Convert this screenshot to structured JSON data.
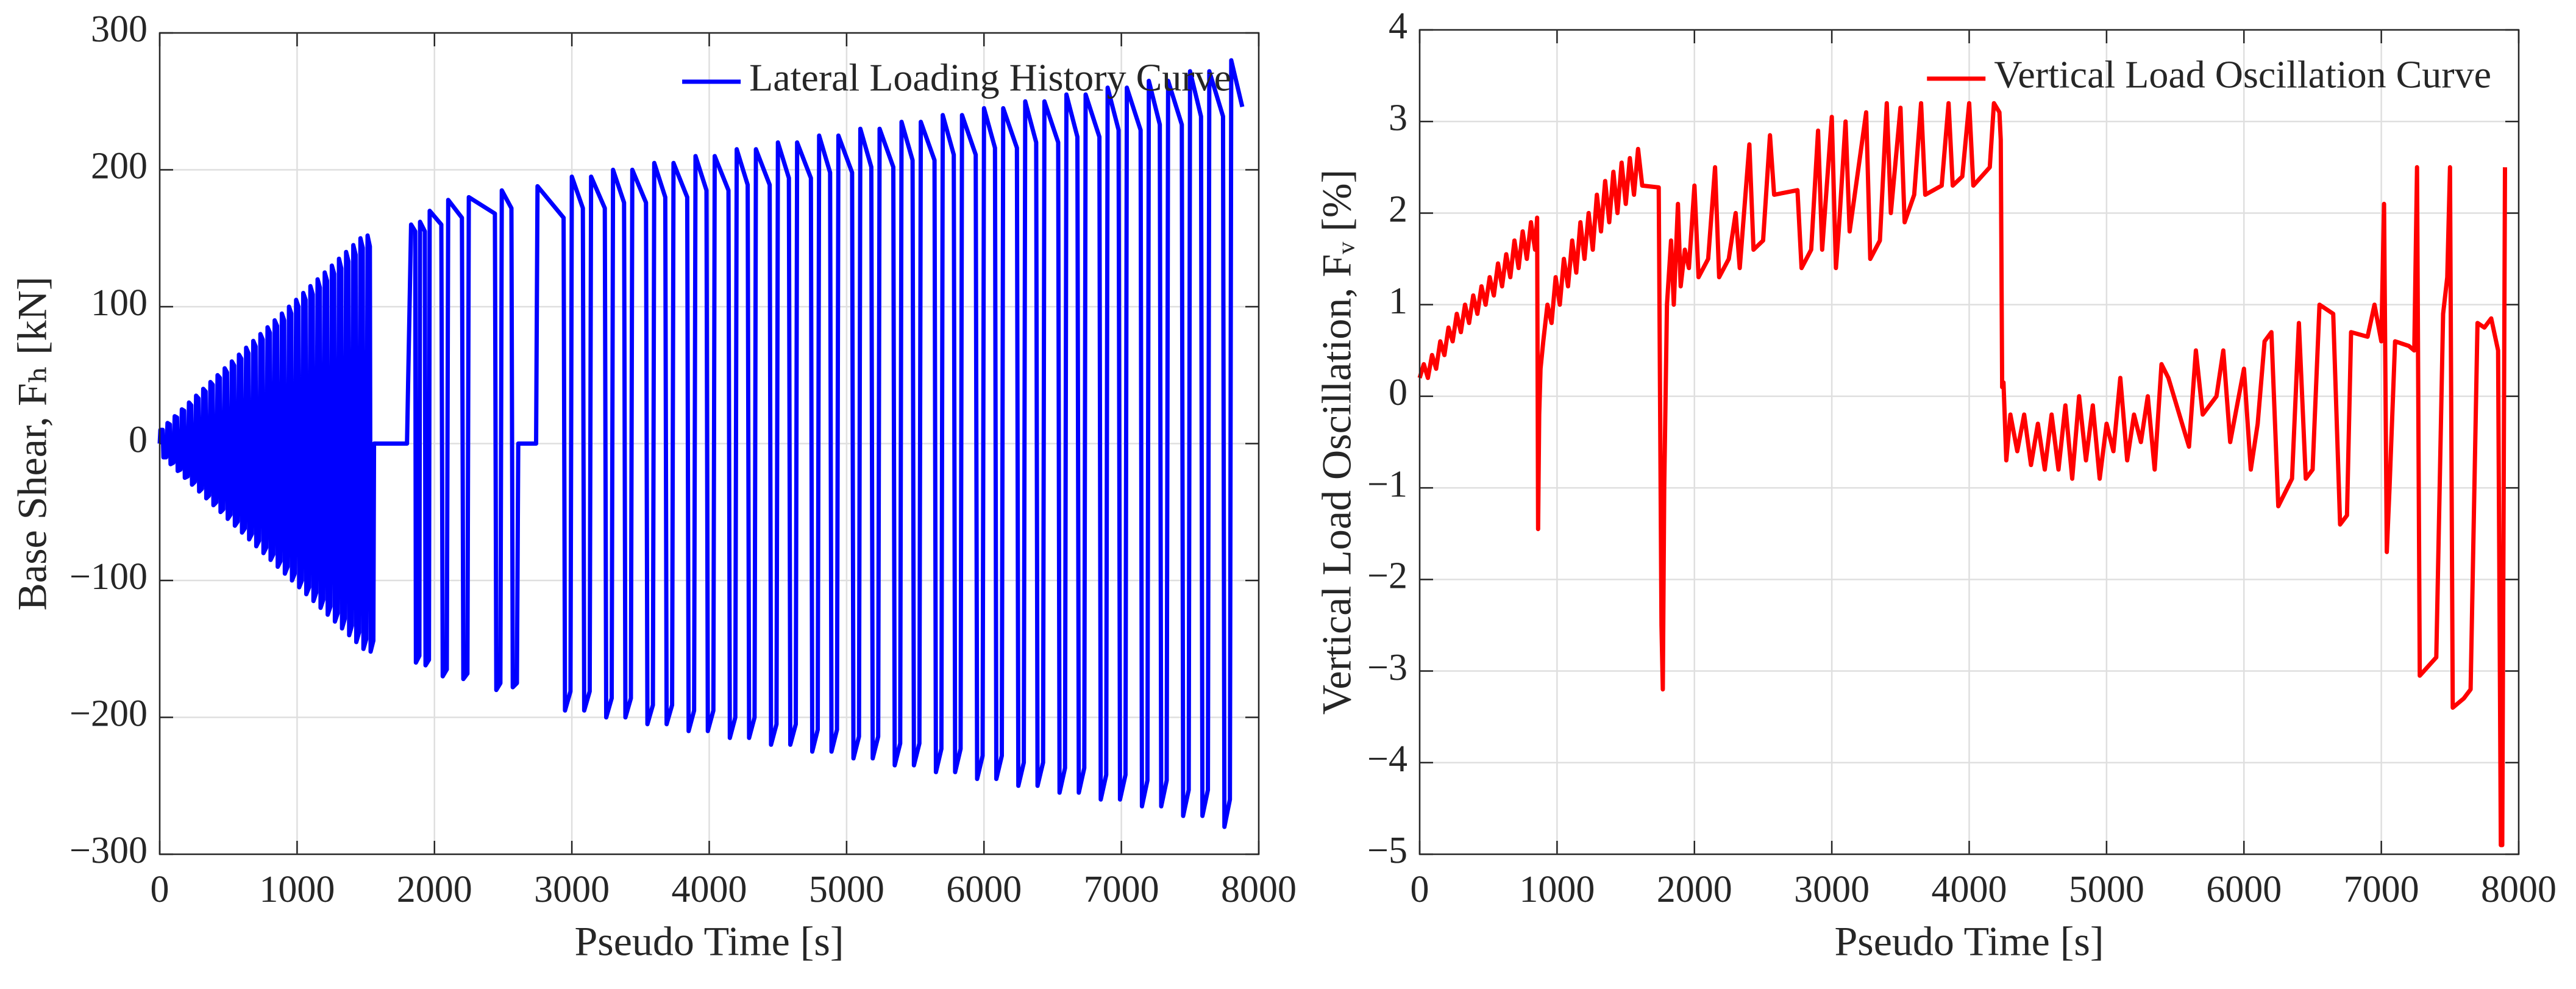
{
  "chart_data": [
    {
      "type": "line",
      "xlabel": "Pseudo Time [s]",
      "ylabel": "Base Shear, Fₕ [kN]",
      "xlim": [
        0,
        8000
      ],
      "xticks": [
        0,
        1000,
        2000,
        3000,
        4000,
        5000,
        6000,
        7000,
        8000
      ],
      "ylim": [
        -300,
        300
      ],
      "yticks": [
        {
          "value": -300,
          "label": "−300"
        },
        {
          "value": -200,
          "label": "−200"
        },
        {
          "value": -100,
          "label": "−100"
        },
        0,
        100,
        200,
        300
      ],
      "grid": true,
      "legend": "upper right",
      "series": [
        {
          "name": "Lateral Loading History Curve",
          "color": "#0000ff",
          "x": [
            0,
            5,
            22,
            27,
            47,
            52,
            57,
            74,
            79,
            99,
            104,
            109,
            126,
            131,
            151,
            156,
            161,
            178,
            183,
            203,
            208,
            213,
            230,
            235,
            255,
            260,
            265,
            282,
            287,
            307,
            312,
            317,
            334,
            339,
            359,
            364,
            369,
            386,
            391,
            411,
            416,
            421,
            438,
            443,
            463,
            468,
            473,
            490,
            495,
            515,
            520,
            525,
            542,
            547,
            567,
            572,
            577,
            594,
            599,
            619,
            624,
            629,
            646,
            651,
            671,
            676,
            681,
            698,
            703,
            723,
            728,
            733,
            750,
            755,
            775,
            780,
            785,
            802,
            807,
            827,
            832,
            837,
            854,
            859,
            879,
            884,
            889,
            906,
            911,
            931,
            936,
            941,
            958,
            963,
            983,
            988,
            993,
            1010,
            1015,
            1035,
            1040,
            1045,
            1062,
            1067,
            1087,
            1092,
            1097,
            1114,
            1119,
            1139,
            1144,
            1149,
            1166,
            1171,
            1191,
            1196,
            1201,
            1218,
            1223,
            1243,
            1248,
            1253,
            1270,
            1275,
            1295,
            1300,
            1305,
            1322,
            1327,
            1347,
            1352,
            1357,
            1374,
            1379,
            1399,
            1404,
            1409,
            1426,
            1431,
            1451,
            1456,
            1461,
            1478,
            1483,
            1503,
            1508,
            1513,
            1530,
            1535,
            1555,
            1560,
            1800,
            1830,
            1860,
            1865,
            1890,
            1895,
            1930,
            1935,
            1960,
            1965,
            2050,
            2060,
            2090,
            2100,
            2200,
            2210,
            2240,
            2250,
            2440,
            2450,
            2480,
            2490,
            2560,
            2570,
            2600,
            2610,
            2740,
            2750,
            2940,
            2950,
            2990,
            3000,
            3080,
            3090,
            3130,
            3140,
            3240,
            3250,
            3290,
            3300,
            3380,
            3390,
            3430,
            3440,
            3540,
            3550,
            3590,
            3600,
            3680,
            3690,
            3730,
            3740,
            3840,
            3850,
            3890,
            3900,
            3980,
            3990,
            4030,
            4040,
            4140,
            4150,
            4190,
            4200,
            4280,
            4290,
            4330,
            4340,
            4440,
            4450,
            4490,
            4500,
            4580,
            4590,
            4630,
            4640,
            4740,
            4750,
            4790,
            4800,
            4880,
            4890,
            4930,
            4940,
            5040,
            5050,
            5090,
            5100,
            5180,
            5190,
            5230,
            5240,
            5340,
            5350,
            5390,
            5400,
            5480,
            5490,
            5530,
            5540,
            5640,
            5650,
            5690,
            5700,
            5780,
            5790,
            5830,
            5840,
            5940,
            5950,
            5990,
            6000,
            6080,
            6090,
            6130,
            6140,
            6240,
            6250,
            6290,
            6300,
            6380,
            6390,
            6430,
            6440,
            6540,
            6550,
            6590,
            6600,
            6680,
            6690,
            6730,
            6740,
            6840,
            6850,
            6890,
            6900,
            6980,
            6990,
            7030,
            7040,
            7140,
            7150,
            7190,
            7200,
            7280,
            7290,
            7330,
            7340,
            7440,
            7450,
            7490,
            7500,
            7580,
            7590,
            7630,
            7640,
            7740,
            7750,
            7790,
            7800,
            7880
          ],
          "values": [
            0,
            10,
            10,
            -10,
            -10,
            0,
            15,
            14,
            -15,
            -14,
            0,
            20,
            19,
            -20,
            -19,
            0,
            25,
            24,
            -25,
            -24,
            0,
            30,
            28,
            -30,
            -28,
            0,
            35,
            33,
            -35,
            -33,
            0,
            40,
            38,
            -40,
            -38,
            0,
            45,
            43,
            -45,
            -43,
            0,
            50,
            48,
            -50,
            -48,
            0,
            55,
            52,
            -55,
            -52,
            0,
            60,
            57,
            -60,
            -57,
            0,
            65,
            62,
            -65,
            -62,
            0,
            70,
            66,
            -70,
            -66,
            0,
            75,
            71,
            -75,
            -71,
            0,
            80,
            76,
            -80,
            -76,
            0,
            85,
            81,
            -85,
            -81,
            0,
            90,
            86,
            -90,
            -86,
            0,
            95,
            90,
            -95,
            -90,
            0,
            100,
            95,
            -100,
            -95,
            0,
            105,
            100,
            -105,
            -100,
            0,
            110,
            105,
            -110,
            -105,
            0,
            115,
            109,
            -115,
            -109,
            0,
            120,
            114,
            -120,
            -114,
            0,
            125,
            119,
            -125,
            -119,
            0,
            130,
            124,
            -130,
            -124,
            0,
            135,
            128,
            -135,
            -128,
            0,
            140,
            133,
            -140,
            -133,
            0,
            145,
            138,
            -145,
            -138,
            0,
            150,
            143,
            -150,
            -143,
            0,
            152,
            144,
            -152,
            -144,
            0,
            0,
            160,
            155,
            -160,
            -155,
            162,
            155,
            -162,
            -158,
            170,
            160,
            -170,
            -165,
            178,
            165,
            -172,
            -168,
            180,
            168,
            -180,
            -175,
            185,
            172,
            -178,
            -175,
            0,
            0,
            188,
            165,
            -195,
            -181,
            195,
            172,
            -195,
            -181,
            195,
            172,
            -200,
            -186,
            200,
            176,
            -200,
            -186,
            200,
            176,
            -205,
            -191,
            205,
            180,
            -205,
            -191,
            205,
            180,
            -210,
            -195,
            210,
            185,
            -210,
            -195,
            210,
            185,
            -215,
            -200,
            215,
            189,
            -215,
            -200,
            215,
            189,
            -220,
            -205,
            220,
            194,
            -220,
            -205,
            220,
            194,
            -225,
            -209,
            225,
            198,
            -225,
            -209,
            225,
            198,
            -230,
            -214,
            230,
            202,
            -230,
            -214,
            230,
            202,
            -235,
            -219,
            235,
            207,
            -235,
            -219,
            235,
            207,
            -240,
            -223,
            240,
            211,
            -240,
            -223,
            240,
            211,
            -245,
            -228,
            245,
            216,
            -245,
            -228,
            245,
            216,
            -250,
            -233,
            250,
            220,
            -250,
            -233,
            250,
            220,
            -255,
            -237,
            255,
            224,
            -255,
            -237,
            255,
            224,
            -260,
            -242,
            260,
            229,
            -260,
            -242,
            260,
            229,
            -265,
            -246,
            265,
            233,
            -265,
            -246,
            265,
            233,
            -272,
            -253,
            272,
            239,
            -272,
            -253,
            272,
            239,
            -280,
            -260,
            280,
            246
          ]
        }
      ]
    },
    {
      "type": "line",
      "xlabel": "Pseudo Time [s]",
      "ylabel": "Vertical Load Oscillation, Fᵥ [%]",
      "xlim": [
        0,
        8000
      ],
      "xticks": [
        0,
        1000,
        2000,
        3000,
        4000,
        5000,
        6000,
        7000,
        8000
      ],
      "ylim": [
        -5,
        4
      ],
      "yticks": [
        {
          "value": -5,
          "label": "−5"
        },
        {
          "value": -4,
          "label": "−4"
        },
        {
          "value": -3,
          "label": "−3"
        },
        {
          "value": -2,
          "label": "−2"
        },
        {
          "value": -1,
          "label": "−1"
        },
        0,
        1,
        2,
        3,
        4
      ],
      "grid": true,
      "legend": "upper right",
      "series": [
        {
          "name": "Vertical Load Oscillation Curve",
          "color": "#ff0000",
          "x": [
            0,
            30,
            60,
            90,
            120,
            150,
            180,
            210,
            240,
            270,
            300,
            330,
            360,
            390,
            420,
            450,
            480,
            510,
            540,
            570,
            600,
            630,
            660,
            690,
            720,
            750,
            780,
            810,
            840,
            855,
            862,
            870,
            880,
            900,
            930,
            960,
            990,
            1020,
            1050,
            1080,
            1110,
            1140,
            1170,
            1200,
            1230,
            1260,
            1290,
            1320,
            1350,
            1380,
            1410,
            1440,
            1470,
            1500,
            1530,
            1560,
            1590,
            1620,
            1740,
            1760,
            1770,
            1780,
            1800,
            1830,
            1850,
            1880,
            1900,
            1930,
            1960,
            2000,
            2030,
            2100,
            2150,
            2180,
            2250,
            2300,
            2330,
            2400,
            2430,
            2500,
            2550,
            2580,
            2750,
            2780,
            2850,
            2900,
            2930,
            3000,
            3030,
            3050,
            3100,
            3130,
            3250,
            3280,
            3350,
            3400,
            3430,
            3500,
            3530,
            3600,
            3650,
            3680,
            3800,
            3850,
            3880,
            3950,
            4000,
            4030,
            4150,
            4180,
            4220,
            4230,
            4240,
            4250,
            4270,
            4300,
            4350,
            4400,
            4450,
            4500,
            4550,
            4600,
            4650,
            4700,
            4750,
            4800,
            4850,
            4900,
            4950,
            5000,
            5050,
            5100,
            5150,
            5200,
            5250,
            5300,
            5350,
            5400,
            5450,
            5600,
            5650,
            5700,
            5800,
            5850,
            5900,
            5950,
            6000,
            6050,
            6100,
            6150,
            6200,
            6250,
            6300,
            6350,
            6400,
            6450,
            6500,
            6550,
            6600,
            6650,
            6700,
            6750,
            6780,
            6900,
            6950,
            7000,
            7020,
            7040,
            7060,
            7100,
            7200,
            7240,
            7260,
            7280,
            7400,
            7450,
            7480,
            7500,
            7520,
            7600,
            7650,
            7700,
            7750,
            7800,
            7850,
            7870,
            7880,
            7900
          ],
          "values": [
            0.2,
            0.35,
            0.2,
            0.45,
            0.3,
            0.6,
            0.45,
            0.75,
            0.6,
            0.9,
            0.7,
            1.0,
            0.8,
            1.1,
            0.9,
            1.2,
            1.0,
            1.3,
            1.1,
            1.45,
            1.2,
            1.55,
            1.3,
            1.7,
            1.4,
            1.8,
            1.5,
            1.9,
            1.6,
            1.95,
            -1.45,
            -0.2,
            0.3,
            0.6,
            1.0,
            0.8,
            1.3,
            1.0,
            1.5,
            1.2,
            1.7,
            1.35,
            1.9,
            1.5,
            2.0,
            1.6,
            2.2,
            1.8,
            2.35,
            1.9,
            2.45,
            2.0,
            2.55,
            2.1,
            2.6,
            2.2,
            2.7,
            2.3,
            2.28,
            -2.5,
            -3.2,
            -1.0,
            1.0,
            1.7,
            1.0,
            2.1,
            1.2,
            1.6,
            1.4,
            2.3,
            1.3,
            1.5,
            2.5,
            1.3,
            1.5,
            2.0,
            1.4,
            2.75,
            1.6,
            1.7,
            2.85,
            2.2,
            2.25,
            1.4,
            1.6,
            2.9,
            1.6,
            3.05,
            1.4,
            1.8,
            3.0,
            1.8,
            3.1,
            1.5,
            1.7,
            3.2,
            2.0,
            3.15,
            1.9,
            2.2,
            3.2,
            2.2,
            2.3,
            3.2,
            2.3,
            2.4,
            3.2,
            2.3,
            2.5,
            3.2,
            3.1,
            2.8,
            0.1,
            0.15,
            -0.7,
            -0.2,
            -0.6,
            -0.2,
            -0.75,
            -0.3,
            -0.8,
            -0.2,
            -0.8,
            -0.1,
            -0.9,
            0.0,
            -0.7,
            -0.1,
            -0.9,
            -0.3,
            -0.6,
            0.2,
            -0.7,
            -0.2,
            -0.5,
            0.0,
            -0.8,
            0.35,
            0.2,
            -0.55,
            0.5,
            -0.2,
            0.0,
            0.5,
            -0.5,
            -0.1,
            0.3,
            -0.8,
            -0.3,
            0.6,
            0.7,
            -1.2,
            -1.05,
            -0.9,
            0.8,
            -0.9,
            -0.8,
            1.0,
            0.95,
            0.9,
            -1.4,
            -1.3,
            0.7,
            0.65,
            1.0,
            0.6,
            2.1,
            -1.7,
            -1.0,
            0.6,
            0.55,
            0.5,
            2.5,
            -3.05,
            -2.85,
            0.9,
            1.3,
            2.5,
            -3.4,
            -3.3,
            -3.2,
            0.8,
            0.75,
            0.85,
            0.5,
            -4.9,
            -4.9,
            2.5
          ]
        }
      ]
    }
  ]
}
